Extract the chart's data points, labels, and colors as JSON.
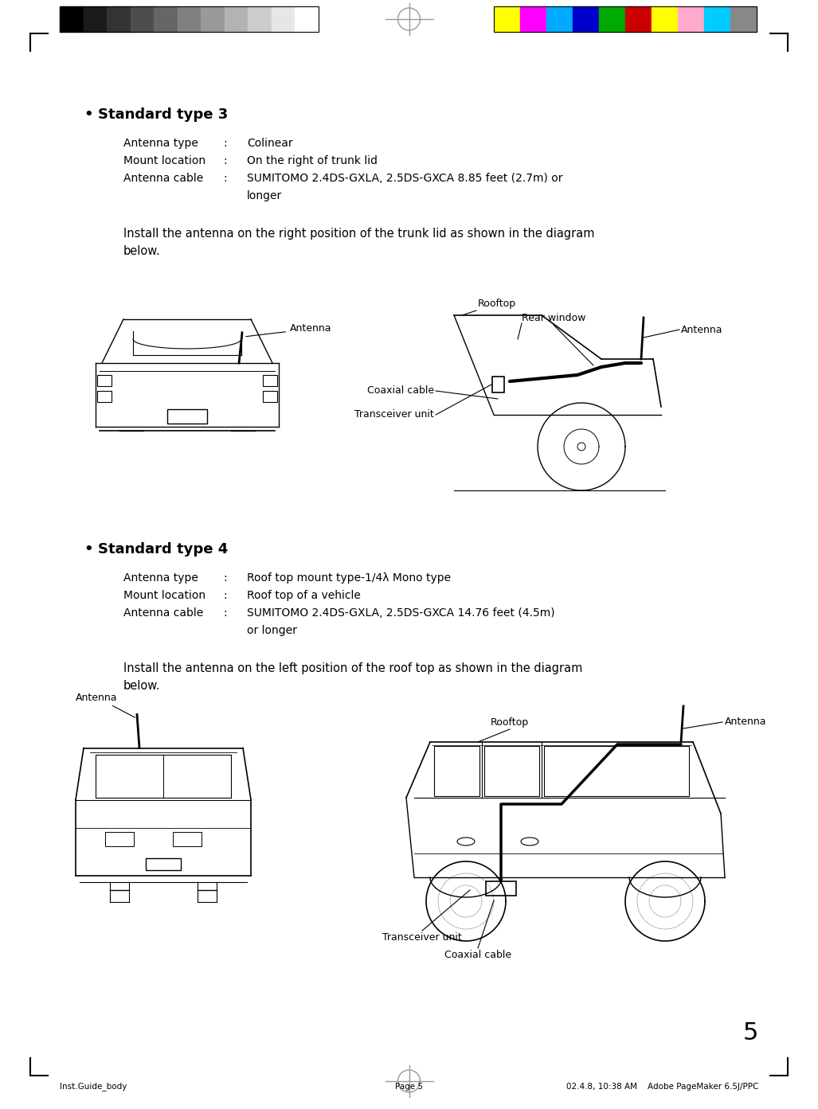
{
  "bg_color": "#ffffff",
  "page_num": "5",
  "footer_left": "Inst.Guide_body",
  "footer_center": "Page 5",
  "footer_right": "02.4.8, 10:38 AM    Adobe PageMaker 6.5J/PPC",
  "section1_title": "Standard type 3",
  "section1_rows": [
    [
      "Antenna type",
      ":",
      "Colinear"
    ],
    [
      "Mount location",
      ":",
      "On the right of trunk lid"
    ],
    [
      "Antenna cable",
      ":",
      "SUMITOMO 2.4DS-GXLA, 2.5DS-GXCA 8.85 feet (2.7m) or"
    ],
    [
      "",
      "",
      "longer"
    ]
  ],
  "section1_install": "Install the antenna on the right position of the trunk lid as shown in the diagram\nbelow.",
  "section2_title": "Standard type 4",
  "section2_rows": [
    [
      "Antenna type",
      ":",
      "Roof top mount type-1/4λ Mono type"
    ],
    [
      "Mount location",
      ":",
      "Roof top of a vehicle"
    ],
    [
      "Antenna cable",
      ":",
      "SUMITOMO 2.4DS-GXLA, 2.5DS-GXCA 14.76 feet (4.5m)"
    ],
    [
      "",
      "",
      "or longer"
    ]
  ],
  "section2_install": "Install the antenna on the left position of the roof top as shown in the diagram\nbelow.",
  "grayscale_colors": [
    "#000000",
    "#1a1a1a",
    "#333333",
    "#4d4d4d",
    "#666666",
    "#808080",
    "#999999",
    "#b3b3b3",
    "#cccccc",
    "#e6e6e6",
    "#ffffff"
  ],
  "color_bar": [
    "#ffff00",
    "#ff00ff",
    "#00aaff",
    "#0000cc",
    "#00aa00",
    "#cc0000",
    "#ffff00",
    "#ffaacc",
    "#00ccff",
    "#888888"
  ]
}
